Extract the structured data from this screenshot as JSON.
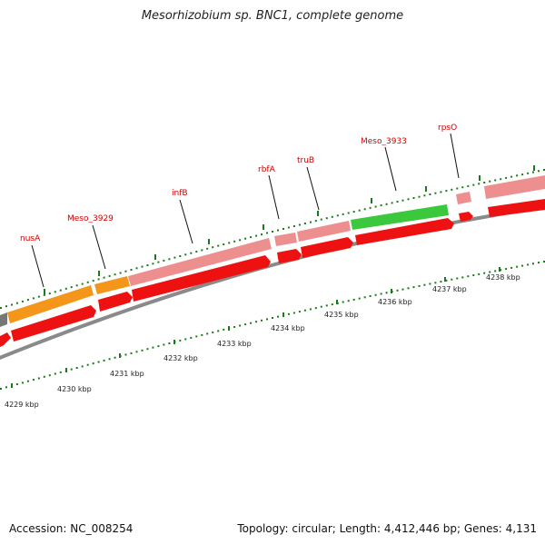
{
  "title": "Mesorhizobium sp. BNC1, complete genome",
  "footer": {
    "accession": "Accession: NC_008254",
    "summary": "Topology: circular; Length: 4,412,446 bp; Genes: 4,131"
  },
  "genes": [
    {
      "label": "nusA"
    },
    {
      "label": "Meso_3929"
    },
    {
      "label": "infB"
    },
    {
      "label": "rbfA"
    },
    {
      "label": "truB"
    },
    {
      "label": "Meso_3933"
    },
    {
      "label": "rpsO"
    }
  ],
  "scale": {
    "unit": "kbp",
    "ticks": [
      "4229 kbp",
      "4230 kbp",
      "4231 kbp",
      "4232 kbp",
      "4233 kbp",
      "4234 kbp",
      "4235 kbp",
      "4236 kbp",
      "4237 kbp",
      "4238 kbp"
    ]
  },
  "colors": {
    "cds_forward": "#f0f0f0",
    "cds": "#ee1111",
    "gene_light": "#ee8f8f",
    "orange": "#f3961a",
    "green": "#3cc83c",
    "backbone": "#8a8a8a",
    "tick": "#1a7a1a",
    "label": "#d10000"
  }
}
